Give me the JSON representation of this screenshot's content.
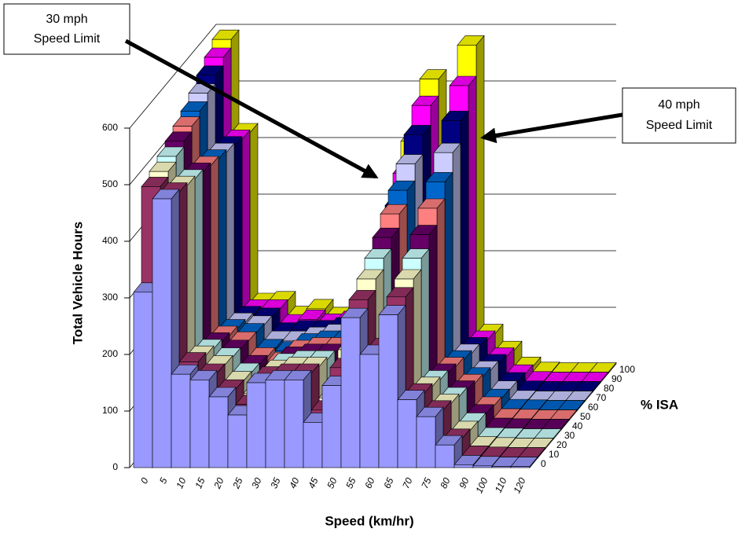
{
  "chart_data": {
    "type": "bar3d",
    "ylabel": "Total Vehicle Hours",
    "xlabel": "Speed (km/hr)",
    "zlabel": "% ISA",
    "annotations": [
      {
        "lines": [
          "30 mph",
          "Speed Limit"
        ]
      },
      {
        "lines": [
          "40 mph",
          "Speed Limit"
        ]
      }
    ],
    "ylim": [
      0,
      600
    ],
    "yticks": [
      0,
      100,
      200,
      300,
      400,
      500,
      600
    ],
    "grid": true,
    "categories": [
      "0",
      "5",
      "10",
      "15",
      "20",
      "25",
      "30",
      "35",
      "40",
      "45",
      "50",
      "55",
      "60",
      "65",
      "70",
      "75",
      "80",
      "90",
      "100",
      "110",
      "120"
    ],
    "series": [
      {
        "name": "0",
        "color": "#9999ff",
        "values": [
          310,
          475,
          165,
          155,
          125,
          93,
          150,
          155,
          155,
          80,
          145,
          265,
          200,
          270,
          120,
          90,
          40,
          5,
          3,
          2,
          2
        ]
      },
      {
        "name": "10",
        "color": "#993366",
        "values": [
          480,
          470,
          170,
          150,
          122,
          95,
          145,
          150,
          150,
          85,
          160,
          280,
          195,
          285,
          115,
          85,
          35,
          5,
          3,
          2,
          2
        ]
      },
      {
        "name": "20",
        "color": "#ffffcc",
        "values": [
          490,
          465,
          165,
          148,
          120,
          98,
          140,
          145,
          145,
          90,
          175,
          300,
          190,
          300,
          110,
          80,
          32,
          5,
          3,
          2,
          2
        ]
      },
      {
        "name": "30",
        "color": "#ccffff",
        "values": [
          500,
          460,
          160,
          145,
          118,
          100,
          135,
          140,
          140,
          95,
          195,
          320,
          185,
          320,
          105,
          75,
          30,
          4,
          3,
          2,
          2
        ]
      },
      {
        "name": "40",
        "color": "#660066",
        "values": [
          510,
          455,
          155,
          142,
          115,
          102,
          130,
          135,
          135,
          100,
          215,
          340,
          180,
          345,
          100,
          70,
          28,
          4,
          3,
          2,
          2
        ]
      },
      {
        "name": "50",
        "color": "#ff8080",
        "values": [
          520,
          450,
          150,
          140,
          112,
          104,
          125,
          130,
          130,
          105,
          240,
          365,
          175,
          375,
          95,
          65,
          25,
          4,
          3,
          2,
          2
        ]
      },
      {
        "name": "60",
        "color": "#0066cc",
        "values": [
          530,
          445,
          145,
          138,
          110,
          106,
          120,
          125,
          125,
          110,
          265,
          390,
          170,
          405,
          90,
          60,
          22,
          4,
          3,
          2,
          2
        ]
      },
      {
        "name": "70",
        "color": "#ccccff",
        "values": [
          545,
          440,
          140,
          135,
          108,
          108,
          115,
          120,
          120,
          115,
          295,
          420,
          165,
          440,
          85,
          55,
          20,
          3,
          2,
          2,
          2
        ]
      },
      {
        "name": "80",
        "color": "#000080",
        "values": [
          560,
          435,
          135,
          132,
          106,
          110,
          110,
          115,
          115,
          120,
          330,
          455,
          160,
          480,
          80,
          50,
          18,
          3,
          2,
          2,
          2
        ]
      },
      {
        "name": "90",
        "color": "#ff00ff",
        "values": [
          575,
          430,
          130,
          130,
          104,
          112,
          105,
          110,
          110,
          125,
          370,
          490,
          155,
          525,
          75,
          45,
          15,
          3,
          2,
          2,
          2
        ]
      },
      {
        "name": "100",
        "color": "#ffff00",
        "values": [
          590,
          425,
          125,
          128,
          102,
          114,
          100,
          105,
          105,
          130,
          410,
          520,
          150,
          580,
          70,
          40,
          12,
          3,
          2,
          2,
          2
        ]
      }
    ]
  }
}
